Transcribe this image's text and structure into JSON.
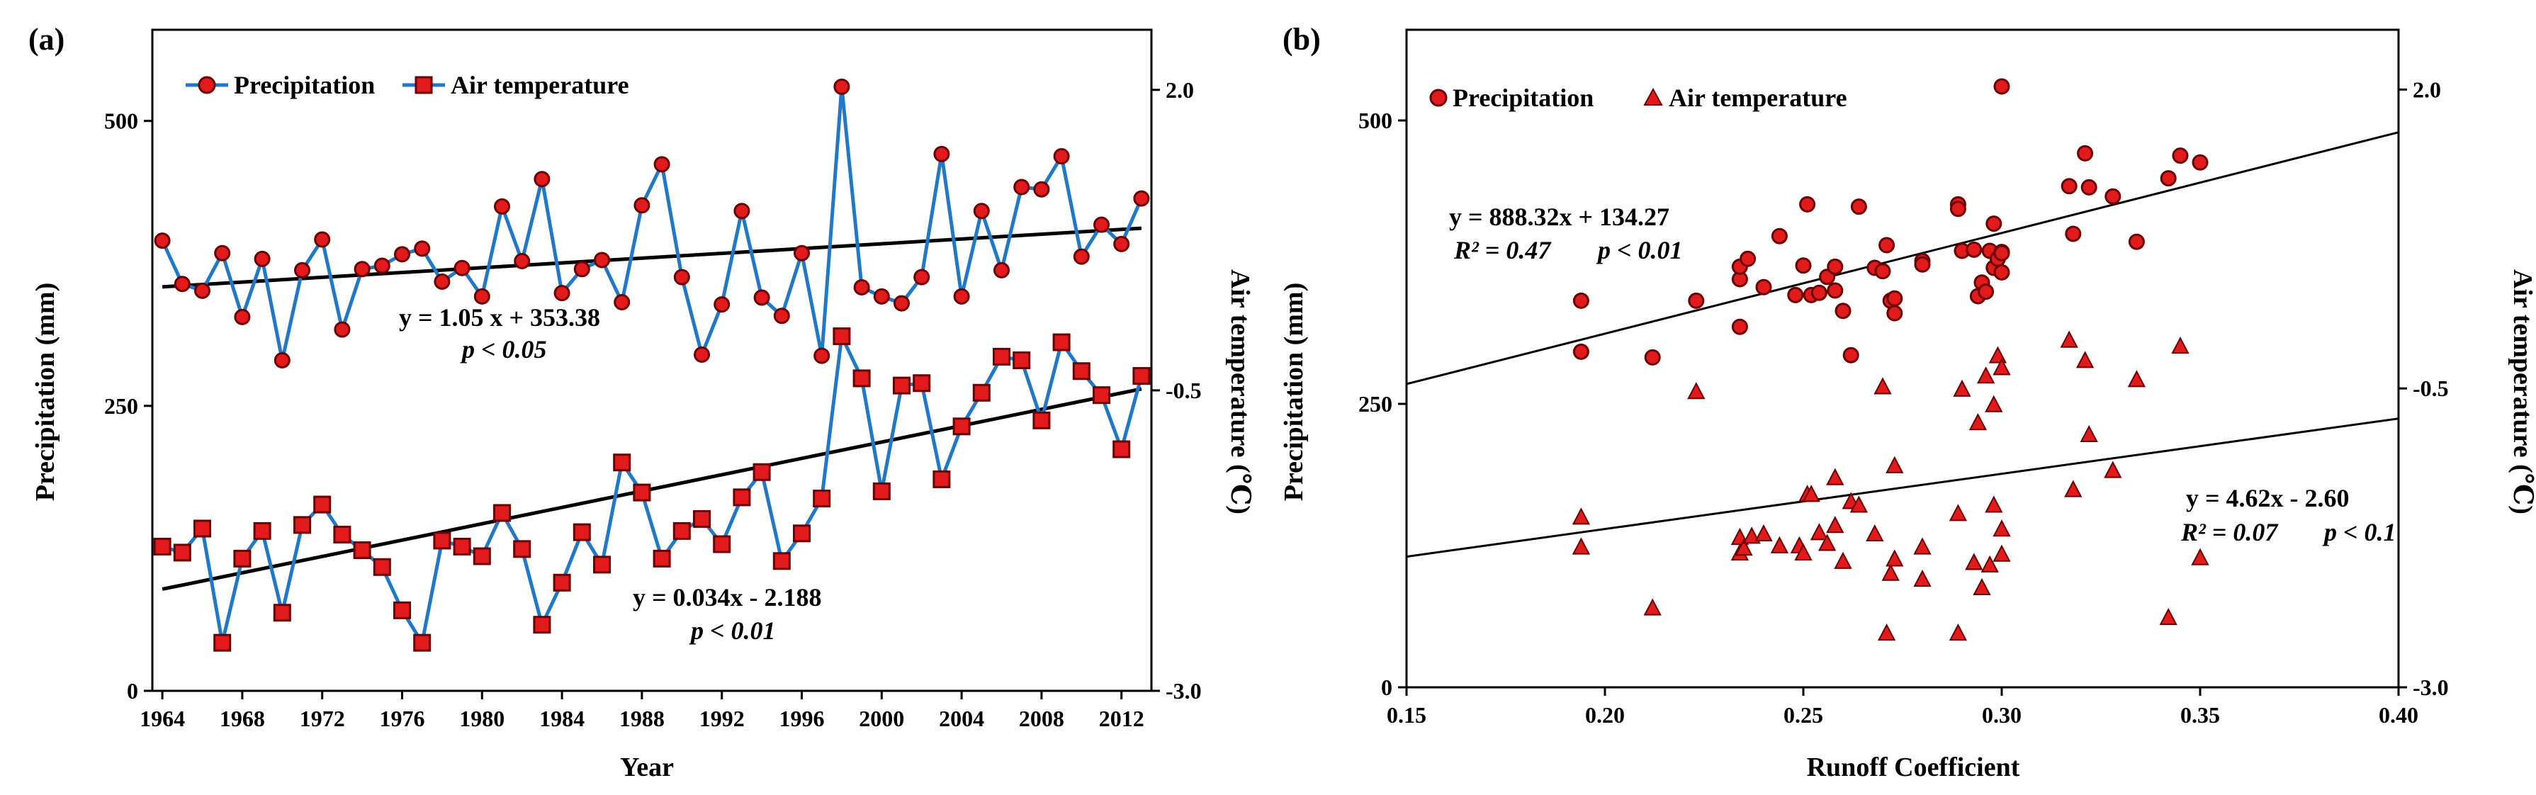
{
  "chart_data": [
    {
      "type": "line",
      "panel_label": "(a)",
      "xlabel": "Year",
      "ylabel_left": "Precipitation (mm)",
      "ylabel_right": "Air temperature (℃)",
      "xlim": [
        1963.5,
        2013.5
      ],
      "ylim_left": [
        0,
        580
      ],
      "ylim_right": [
        -3.0,
        2.5
      ],
      "xticks": [
        1964,
        1968,
        1972,
        1976,
        1980,
        1984,
        1988,
        1992,
        1996,
        2000,
        2004,
        2008,
        2012
      ],
      "xtick_labels": [
        "1964",
        "1968",
        "1972",
        "1976",
        "1980",
        "1984",
        "1988",
        "1992",
        "1996",
        "2000",
        "2004",
        "2008",
        "2012"
      ],
      "yticks_left": [
        0,
        250,
        500
      ],
      "yticks_left_labels": [
        "0",
        "250",
        "500"
      ],
      "yticks_right": [
        -3.0,
        -0.5,
        2.0
      ],
      "yticks_right_labels": [
        "-3.0",
        "-0.5",
        "2.0"
      ],
      "legend": [
        "Precipitation",
        "Air temperature"
      ],
      "x": [
        1964,
        1965,
        1966,
        1967,
        1968,
        1969,
        1970,
        1971,
        1972,
        1973,
        1974,
        1975,
        1976,
        1977,
        1978,
        1979,
        1980,
        1981,
        1982,
        1983,
        1984,
        1985,
        1986,
        1987,
        1988,
        1989,
        1990,
        1991,
        1992,
        1993,
        1994,
        1995,
        1996,
        1997,
        1998,
        1999,
        2000,
        2001,
        2002,
        2003,
        2004,
        2005,
        2006,
        2007,
        2008,
        2009,
        2010,
        2011,
        2012,
        2013
      ],
      "series": [
        {
          "name": "Precipitation",
          "axis": "left",
          "values": [
            395,
            357,
            351,
            384,
            328,
            379,
            290,
            369,
            396,
            317,
            370,
            373,
            383,
            388,
            359,
            371,
            346,
            425,
            377,
            449,
            349,
            370,
            378,
            341,
            426,
            462,
            363,
            295,
            339,
            421,
            345,
            329,
            384,
            294,
            530,
            354,
            346,
            340,
            363,
            471,
            346,
            421,
            369,
            442,
            440,
            469,
            381,
            409,
            392,
            432
          ],
          "trend": {
            "slope": 1.05,
            "intercept": 353.38,
            "x_origin": 1963
          },
          "equation": "y = 1.05 x + 353.38",
          "significance": "p < 0.05"
        },
        {
          "name": "Air temperature",
          "axis": "right",
          "values": [
            -1.8,
            -1.85,
            -1.65,
            -2.6,
            -1.9,
            -1.67,
            -2.35,
            -1.62,
            -1.45,
            -1.7,
            -1.83,
            -1.97,
            -2.33,
            -2.6,
            -1.75,
            -1.8,
            -1.88,
            -1.52,
            -1.82,
            -2.45,
            -2.1,
            -1.68,
            -1.95,
            -1.1,
            -1.35,
            -1.9,
            -1.67,
            -1.57,
            -1.78,
            -1.39,
            -1.18,
            -1.92,
            -1.69,
            -1.4,
            -0.05,
            -0.4,
            -1.34,
            -0.46,
            -0.44,
            -1.24,
            -0.8,
            -0.52,
            -0.22,
            -0.25,
            -0.75,
            -0.1,
            -0.34,
            -0.54,
            -0.99,
            -0.38
          ],
          "trend": {
            "slope": 0.034,
            "intercept": -2.188,
            "x_origin": 1963
          },
          "equation": "y = 0.034x - 2.188",
          "significance": "p < 0.01"
        }
      ]
    },
    {
      "type": "scatter",
      "panel_label": "(b)",
      "xlabel": "Runoff Coefficient",
      "ylabel_left": "Precipitation (mm)",
      "ylabel_right": "Air temperature (℃)",
      "xlim": [
        0.15,
        0.4
      ],
      "ylim_left": [
        0,
        580
      ],
      "ylim_right": [
        -3.0,
        2.5
      ],
      "xticks": [
        0.15,
        0.2,
        0.25,
        0.3,
        0.35,
        0.4
      ],
      "xtick_labels": [
        "0.15",
        "0.20",
        "0.25",
        "0.30",
        "0.35",
        "0.40"
      ],
      "yticks_left": [
        0,
        250,
        500
      ],
      "yticks_left_labels": [
        "0",
        "250",
        "500"
      ],
      "yticks_right": [
        -3.0,
        -0.5,
        2.0
      ],
      "yticks_right_labels": [
        "-3.0",
        "-0.5",
        "2.0"
      ],
      "legend": [
        "Precipitation",
        "Air temperature"
      ],
      "series": [
        {
          "name": "Precipitation",
          "axis": "left",
          "x": [
            0.194,
            0.194,
            0.212,
            0.223,
            0.234,
            0.234,
            0.234,
            0.236,
            0.24,
            0.244,
            0.248,
            0.25,
            0.251,
            0.252,
            0.254,
            0.256,
            0.258,
            0.258,
            0.26,
            0.262,
            0.264,
            0.268,
            0.27,
            0.271,
            0.272,
            0.273,
            0.273,
            0.28,
            0.28,
            0.289,
            0.289,
            0.29,
            0.293,
            0.294,
            0.295,
            0.296,
            0.297,
            0.298,
            0.298,
            0.299,
            0.3,
            0.3,
            0.3,
            0.3,
            0.317,
            0.318,
            0.321,
            0.322,
            0.328,
            0.334,
            0.342,
            0.345,
            0.35
          ],
          "y": [
            341,
            296,
            291,
            341,
            318,
            360,
            371,
            378,
            353,
            398,
            346,
            372,
            426,
            346,
            348,
            362,
            350,
            371,
            332,
            293,
            424,
            370,
            367,
            390,
            341,
            330,
            343,
            376,
            373,
            426,
            422,
            385,
            386,
            345,
            357,
            349,
            385,
            409,
            370,
            378,
            384,
            383,
            366,
            530,
            442,
            400,
            471,
            441,
            433,
            393,
            449,
            469,
            463
          ],
          "trend": {
            "slope": 888.32,
            "intercept": 134.27
          },
          "equation": "y = 888.32x + 134.27",
          "stats_r2_label": "R² = 0.47",
          "stats_p_label": "p < 0.01"
        },
        {
          "name": "Air temperature",
          "axis": "right",
          "x": [
            0.194,
            0.194,
            0.212,
            0.223,
            0.234,
            0.234,
            0.235,
            0.237,
            0.24,
            0.244,
            0.249,
            0.25,
            0.251,
            0.252,
            0.254,
            0.256,
            0.258,
            0.258,
            0.26,
            0.262,
            0.264,
            0.268,
            0.27,
            0.271,
            0.272,
            0.273,
            0.273,
            0.28,
            0.28,
            0.289,
            0.289,
            0.29,
            0.293,
            0.294,
            0.295,
            0.296,
            0.297,
            0.298,
            0.298,
            0.299,
            0.3,
            0.3,
            0.3,
            0.317,
            0.318,
            0.321,
            0.322,
            0.328,
            0.334,
            0.342,
            0.345,
            0.35
          ],
          "y": [
            -1.58,
            -1.83,
            -2.34,
            -0.53,
            -1.88,
            -1.75,
            -1.84,
            -1.74,
            -1.72,
            -1.82,
            -1.82,
            -1.88,
            -1.39,
            -1.39,
            -1.71,
            -1.8,
            -1.25,
            -1.65,
            -1.95,
            -1.45,
            -1.48,
            -1.72,
            -0.49,
            -2.55,
            -2.05,
            -1.93,
            -1.15,
            -2.1,
            -1.83,
            -1.55,
            -2.55,
            -0.51,
            -1.96,
            -0.79,
            -2.17,
            -0.4,
            -1.98,
            -1.48,
            -0.64,
            -0.23,
            -1.68,
            -1.89,
            -0.33,
            -0.1,
            -1.35,
            -0.27,
            -0.89,
            -1.19,
            -0.43,
            -2.42,
            -0.15,
            -1.92
          ],
          "trend": {
            "slope": 4.62,
            "intercept": -2.6
          },
          "equation": "y = 4.62x - 2.60",
          "stats_r2_label": "R² = 0.07",
          "stats_p_label": "p < 0.1"
        }
      ]
    }
  ],
  "colors": {
    "line": "#1f78c8",
    "marker_fill": "#e31a1c",
    "marker_stroke": "#6b0000",
    "axis": "#000000"
  }
}
